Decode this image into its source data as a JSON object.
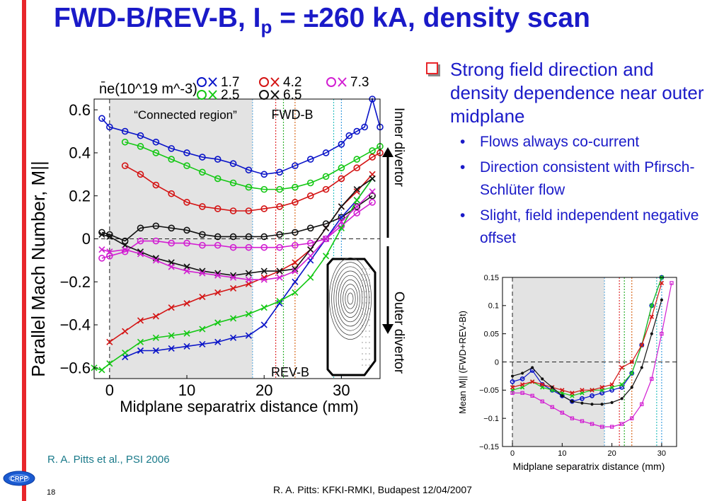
{
  "slide": {
    "title_main": "FWD-B/REV-B, I",
    "title_sub": "p",
    "title_rest": " = ±260 kA, density scan",
    "citation": "R. A. Pitts et al., PSI 2006",
    "footer": "R. A. Pitts: KFKI-RMKI, Budapest 12/04/2007",
    "page_number": "18",
    "logo_text": "CRPP",
    "colors": {
      "title": "#1a1ac8",
      "accent_bar": "#e8262b",
      "citation": "#1a7a8a"
    }
  },
  "bullets": {
    "main": "Strong field direction and density dependence near outer midplane",
    "subs": [
      "Flows always co-current",
      "Direction consistent with Pfirsch-Schlüter flow",
      "Slight, field independent negative offset"
    ]
  },
  "chart_data": [
    {
      "type": "line",
      "ylabel": "Parallel Mach Number, M||",
      "xlabel": "Midplane separatrix distance (mm)",
      "xlim": [
        -2,
        35
      ],
      "ylim": [
        -0.65,
        0.65
      ],
      "xticks": [
        "0",
        "10",
        "20",
        "30"
      ],
      "yticks": [
        "0.6",
        "0.4",
        "0.2",
        "0",
        "−0.2",
        "−0.4",
        "−0.6"
      ],
      "legend_title": "n̄e(10^19 m^-3)",
      "legend": [
        {
          "name": "1.7",
          "color": "#0a14c8"
        },
        {
          "name": "4.2",
          "color": "#d41414"
        },
        {
          "name": "7.3",
          "color": "#d21ed2"
        },
        {
          "name": "2.5",
          "color": "#14c814"
        },
        {
          "name": "6.5",
          "color": "#111111"
        }
      ],
      "annotations": {
        "shaded": "“Connected region”",
        "fwd": "FWD-B",
        "rev": "REV-B",
        "inner": "Inner divertor",
        "outer": "Outer divertor"
      },
      "shaded_range": [
        0,
        18.5
      ],
      "vlines": [
        {
          "x": 18.5,
          "color": "#6ab0e0"
        },
        {
          "x": 21.5,
          "color": "#e03030"
        },
        {
          "x": 22.5,
          "color": "#30b030"
        },
        {
          "x": 24.0,
          "color": "#d86a20"
        },
        {
          "x": 29.0,
          "color": "#30c0c0"
        },
        {
          "x": 30.0,
          "color": "#40a0e0"
        }
      ],
      "series": [
        {
          "name": "1.7",
          "group": "FWD-B",
          "color": "#0a14c8",
          "marker": "o",
          "x": [
            -1,
            0,
            2,
            4,
            6,
            8,
            10,
            12,
            14,
            16,
            18,
            20,
            22,
            24,
            26,
            28,
            30,
            31,
            32,
            33,
            34,
            35
          ],
          "y": [
            0.56,
            0.52,
            0.5,
            0.48,
            0.45,
            0.42,
            0.4,
            0.38,
            0.37,
            0.35,
            0.32,
            0.3,
            0.31,
            0.34,
            0.37,
            0.4,
            0.44,
            0.48,
            0.5,
            0.52,
            0.65,
            0.52
          ]
        },
        {
          "name": "2.5",
          "group": "FWD-B",
          "color": "#14c814",
          "marker": "o",
          "x": [
            2,
            4,
            6,
            8,
            10,
            12,
            14,
            16,
            18,
            20,
            22,
            24,
            26,
            28,
            30,
            32,
            34,
            35
          ],
          "y": [
            0.45,
            0.43,
            0.4,
            0.37,
            0.34,
            0.31,
            0.28,
            0.26,
            0.24,
            0.23,
            0.23,
            0.24,
            0.26,
            0.29,
            0.33,
            0.37,
            0.41,
            0.43
          ]
        },
        {
          "name": "4.2",
          "group": "FWD-B",
          "color": "#d41414",
          "marker": "o",
          "x": [
            2,
            4,
            6,
            8,
            10,
            12,
            14,
            16,
            18,
            20,
            22,
            24,
            26,
            28,
            30,
            32,
            34,
            35
          ],
          "y": [
            0.34,
            0.3,
            0.25,
            0.21,
            0.17,
            0.15,
            0.14,
            0.13,
            0.13,
            0.14,
            0.15,
            0.17,
            0.2,
            0.23,
            0.28,
            0.33,
            0.38,
            0.4
          ]
        },
        {
          "name": "6.5",
          "group": "FWD-B",
          "color": "#111111",
          "marker": "o",
          "x": [
            -1,
            0,
            2,
            4,
            6,
            8,
            10,
            12,
            14,
            16,
            18,
            20,
            22,
            24,
            26,
            28,
            30,
            32,
            34
          ],
          "y": [
            0.03,
            0.02,
            -0.01,
            0.05,
            0.06,
            0.05,
            0.04,
            0.02,
            0.01,
            0.01,
            0.01,
            0.01,
            0.02,
            0.03,
            0.05,
            0.07,
            0.1,
            0.15,
            0.2
          ]
        },
        {
          "name": "7.3",
          "group": "FWD-B",
          "color": "#d21ed2",
          "marker": "o",
          "x": [
            -1,
            0,
            2,
            4,
            6,
            8,
            10,
            12,
            14,
            16,
            18,
            20,
            22,
            24,
            26,
            28,
            30,
            32,
            34
          ],
          "y": [
            -0.09,
            -0.08,
            -0.06,
            -0.01,
            -0.01,
            -0.02,
            -0.02,
            -0.03,
            -0.03,
            -0.04,
            -0.04,
            -0.04,
            -0.04,
            -0.03,
            -0.02,
            0.0,
            0.06,
            0.12,
            0.17
          ]
        },
        {
          "name": "1.7",
          "group": "REV-B",
          "color": "#0a14c8",
          "marker": "x",
          "x": [
            2,
            4,
            6,
            8,
            10,
            12,
            14,
            16,
            18,
            20,
            22,
            24,
            26,
            28,
            30,
            32,
            34
          ],
          "y": [
            -0.55,
            -0.52,
            -0.52,
            -0.51,
            -0.5,
            -0.49,
            -0.48,
            -0.46,
            -0.45,
            -0.4,
            -0.3,
            -0.2,
            -0.1,
            0.0,
            0.1,
            0.18,
            0.28
          ]
        },
        {
          "name": "2.5",
          "group": "REV-B",
          "color": "#14c814",
          "marker": "x",
          "x": [
            -2,
            -1,
            0,
            2,
            4,
            6,
            8,
            10,
            12,
            14,
            16,
            18,
            20,
            22,
            24,
            26,
            28,
            30,
            32,
            34
          ],
          "y": [
            -0.6,
            -0.61,
            -0.58,
            -0.53,
            -0.48,
            -0.46,
            -0.45,
            -0.44,
            -0.42,
            -0.39,
            -0.37,
            -0.35,
            -0.32,
            -0.29,
            -0.25,
            -0.18,
            -0.08,
            0.05,
            0.18,
            0.28
          ]
        },
        {
          "name": "4.2",
          "group": "REV-B",
          "color": "#d41414",
          "marker": "x",
          "x": [
            0,
            2,
            4,
            6,
            8,
            10,
            12,
            14,
            16,
            18,
            20,
            22,
            24,
            26,
            28,
            30,
            32,
            34
          ],
          "y": [
            -0.48,
            -0.43,
            -0.38,
            -0.36,
            -0.32,
            -0.3,
            -0.27,
            -0.25,
            -0.23,
            -0.21,
            -0.18,
            -0.15,
            -0.11,
            -0.05,
            0.05,
            0.15,
            0.22,
            0.3
          ]
        },
        {
          "name": "6.5",
          "group": "REV-B",
          "color": "#111111",
          "marker": "x",
          "x": [
            -1,
            0,
            2,
            4,
            6,
            8,
            10,
            12,
            14,
            16,
            18,
            20,
            22,
            24,
            26,
            28,
            30,
            32,
            34
          ],
          "y": [
            0.02,
            0.01,
            -0.03,
            -0.06,
            -0.09,
            -0.11,
            -0.13,
            -0.15,
            -0.16,
            -0.17,
            -0.16,
            -0.15,
            -0.15,
            -0.14,
            -0.05,
            0.05,
            0.15,
            0.23,
            0.28
          ]
        },
        {
          "name": "7.3",
          "group": "REV-B",
          "color": "#d21ed2",
          "marker": "x",
          "x": [
            -1,
            0,
            2,
            4,
            6,
            8,
            10,
            12,
            14,
            16,
            18,
            20,
            22,
            24,
            26,
            28,
            30,
            32,
            34
          ],
          "y": [
            -0.05,
            -0.06,
            -0.05,
            -0.07,
            -0.1,
            -0.13,
            -0.15,
            -0.16,
            -0.17,
            -0.18,
            -0.19,
            -0.19,
            -0.18,
            -0.15,
            -0.08,
            0.0,
            0.08,
            0.15,
            0.22
          ]
        }
      ]
    },
    {
      "type": "line",
      "ylabel": "Mean M|| (FWD+REV-Bt)",
      "xlabel": "Midplane separatrix distance (mm)",
      "xlim": [
        -2,
        33
      ],
      "ylim": [
        -0.15,
        0.15
      ],
      "xticks": [
        "0",
        "10",
        "20",
        "30"
      ],
      "yticks": [
        "0.15",
        "0.1",
        "0.05",
        "0",
        "−0.05",
        "−0.1",
        "−0.15"
      ],
      "shaded_range": [
        0,
        18.5
      ],
      "vlines": [
        {
          "x": 18.5,
          "color": "#6ab0e0"
        },
        {
          "x": 21.5,
          "color": "#e03030"
        },
        {
          "x": 22.5,
          "color": "#30b030"
        },
        {
          "x": 24.0,
          "color": "#d86a20"
        },
        {
          "x": 29.0,
          "color": "#30c0c0"
        },
        {
          "x": 30.0,
          "color": "#40a0e0"
        }
      ],
      "series": [
        {
          "name": "1.7",
          "color": "#0a14c8",
          "marker": "o",
          "x": [
            0,
            2,
            4,
            6,
            8,
            10,
            12,
            14,
            16,
            18,
            20,
            22,
            24,
            26,
            28,
            30
          ],
          "y": [
            -0.035,
            -0.03,
            -0.015,
            -0.04,
            -0.05,
            -0.06,
            -0.07,
            -0.065,
            -0.06,
            -0.055,
            -0.05,
            -0.045,
            -0.02,
            0.03,
            0.1,
            0.15
          ]
        },
        {
          "name": "2.5",
          "color": "#14c814",
          "marker": "x",
          "x": [
            0,
            2,
            4,
            6,
            8,
            10,
            12,
            14,
            16,
            18,
            20,
            22,
            24,
            26,
            28,
            30
          ],
          "y": [
            -0.05,
            -0.045,
            -0.035,
            -0.045,
            -0.05,
            -0.055,
            -0.06,
            -0.055,
            -0.05,
            -0.05,
            -0.045,
            -0.04,
            -0.02,
            0.03,
            0.1,
            0.15
          ]
        },
        {
          "name": "4.2",
          "color": "#d41414",
          "marker": "x",
          "x": [
            0,
            2,
            4,
            6,
            8,
            10,
            12,
            14,
            16,
            18,
            20,
            22,
            24,
            26,
            28,
            30
          ],
          "y": [
            -0.045,
            -0.04,
            -0.035,
            -0.04,
            -0.045,
            -0.05,
            -0.055,
            -0.05,
            -0.05,
            -0.045,
            -0.04,
            -0.01,
            0.0,
            0.03,
            0.08,
            0.14
          ]
        },
        {
          "name": "6.5",
          "color": "#111111",
          "marker": "*",
          "x": [
            0,
            2,
            4,
            6,
            8,
            10,
            12,
            14,
            16,
            18,
            20,
            22,
            24,
            26,
            28,
            30
          ],
          "y": [
            -0.025,
            -0.02,
            -0.01,
            -0.03,
            -0.045,
            -0.06,
            -0.07,
            -0.073,
            -0.075,
            -0.075,
            -0.072,
            -0.065,
            -0.045,
            -0.01,
            0.05,
            0.11
          ]
        },
        {
          "name": "7.3",
          "color": "#d21ed2",
          "marker": "s",
          "x": [
            0,
            2,
            4,
            6,
            8,
            10,
            12,
            14,
            16,
            18,
            20,
            22,
            24,
            26,
            28,
            30,
            32
          ],
          "y": [
            -0.055,
            -0.055,
            -0.06,
            -0.07,
            -0.08,
            -0.09,
            -0.1,
            -0.105,
            -0.11,
            -0.115,
            -0.115,
            -0.11,
            -0.1,
            -0.075,
            -0.03,
            0.05,
            0.14
          ]
        }
      ]
    }
  ]
}
